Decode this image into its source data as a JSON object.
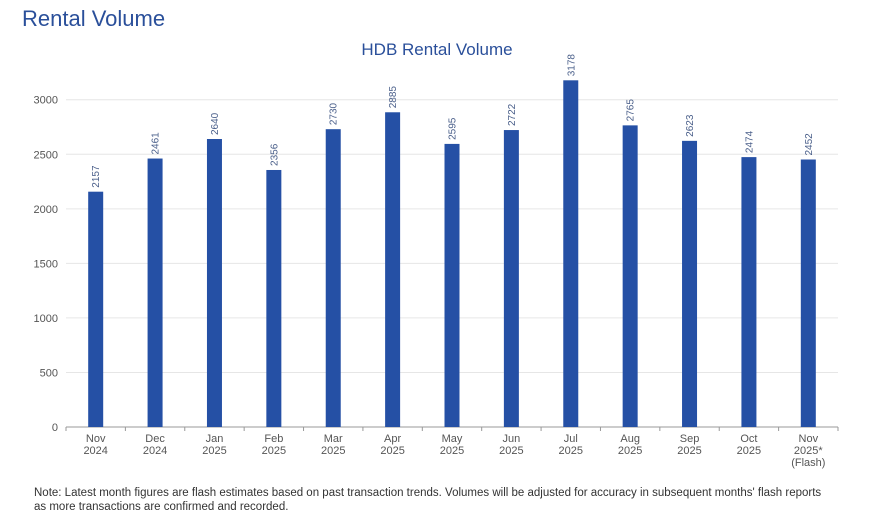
{
  "page": {
    "title": "Rental Volume",
    "note": "Note: Latest month figures are flash estimates based on past transaction trends. Volumes will be adjusted for accuracy in subsequent months' flash reports as more transactions are confirmed and recorded."
  },
  "colors": {
    "bar": "#2550a5",
    "title": "#2a4f9a",
    "label": "#4a5f8a",
    "axis_text": "#555555",
    "grid": "#e6e6e6"
  },
  "chart_data": {
    "type": "bar",
    "title": "HDB Rental Volume",
    "xlabel": "",
    "ylabel": "",
    "ylim": [
      0,
      3300
    ],
    "yticks": [
      0,
      500,
      1000,
      1500,
      2000,
      2500,
      3000
    ],
    "grid": true,
    "categories": [
      [
        "Nov",
        "2024"
      ],
      [
        "Dec",
        "2024"
      ],
      [
        "Jan",
        "2025"
      ],
      [
        "Feb",
        "2025"
      ],
      [
        "Mar",
        "2025"
      ],
      [
        "Apr",
        "2025"
      ],
      [
        "May",
        "2025"
      ],
      [
        "Jun",
        "2025"
      ],
      [
        "Jul",
        "2025"
      ],
      [
        "Aug",
        "2025"
      ],
      [
        "Sep",
        "2025"
      ],
      [
        "Oct",
        "2025"
      ],
      [
        "Nov",
        "2025*",
        "(Flash)"
      ]
    ],
    "values": [
      2157,
      2461,
      2640,
      2356,
      2730,
      2885,
      2595,
      2722,
      3178,
      2765,
      2623,
      2474,
      2452
    ]
  }
}
